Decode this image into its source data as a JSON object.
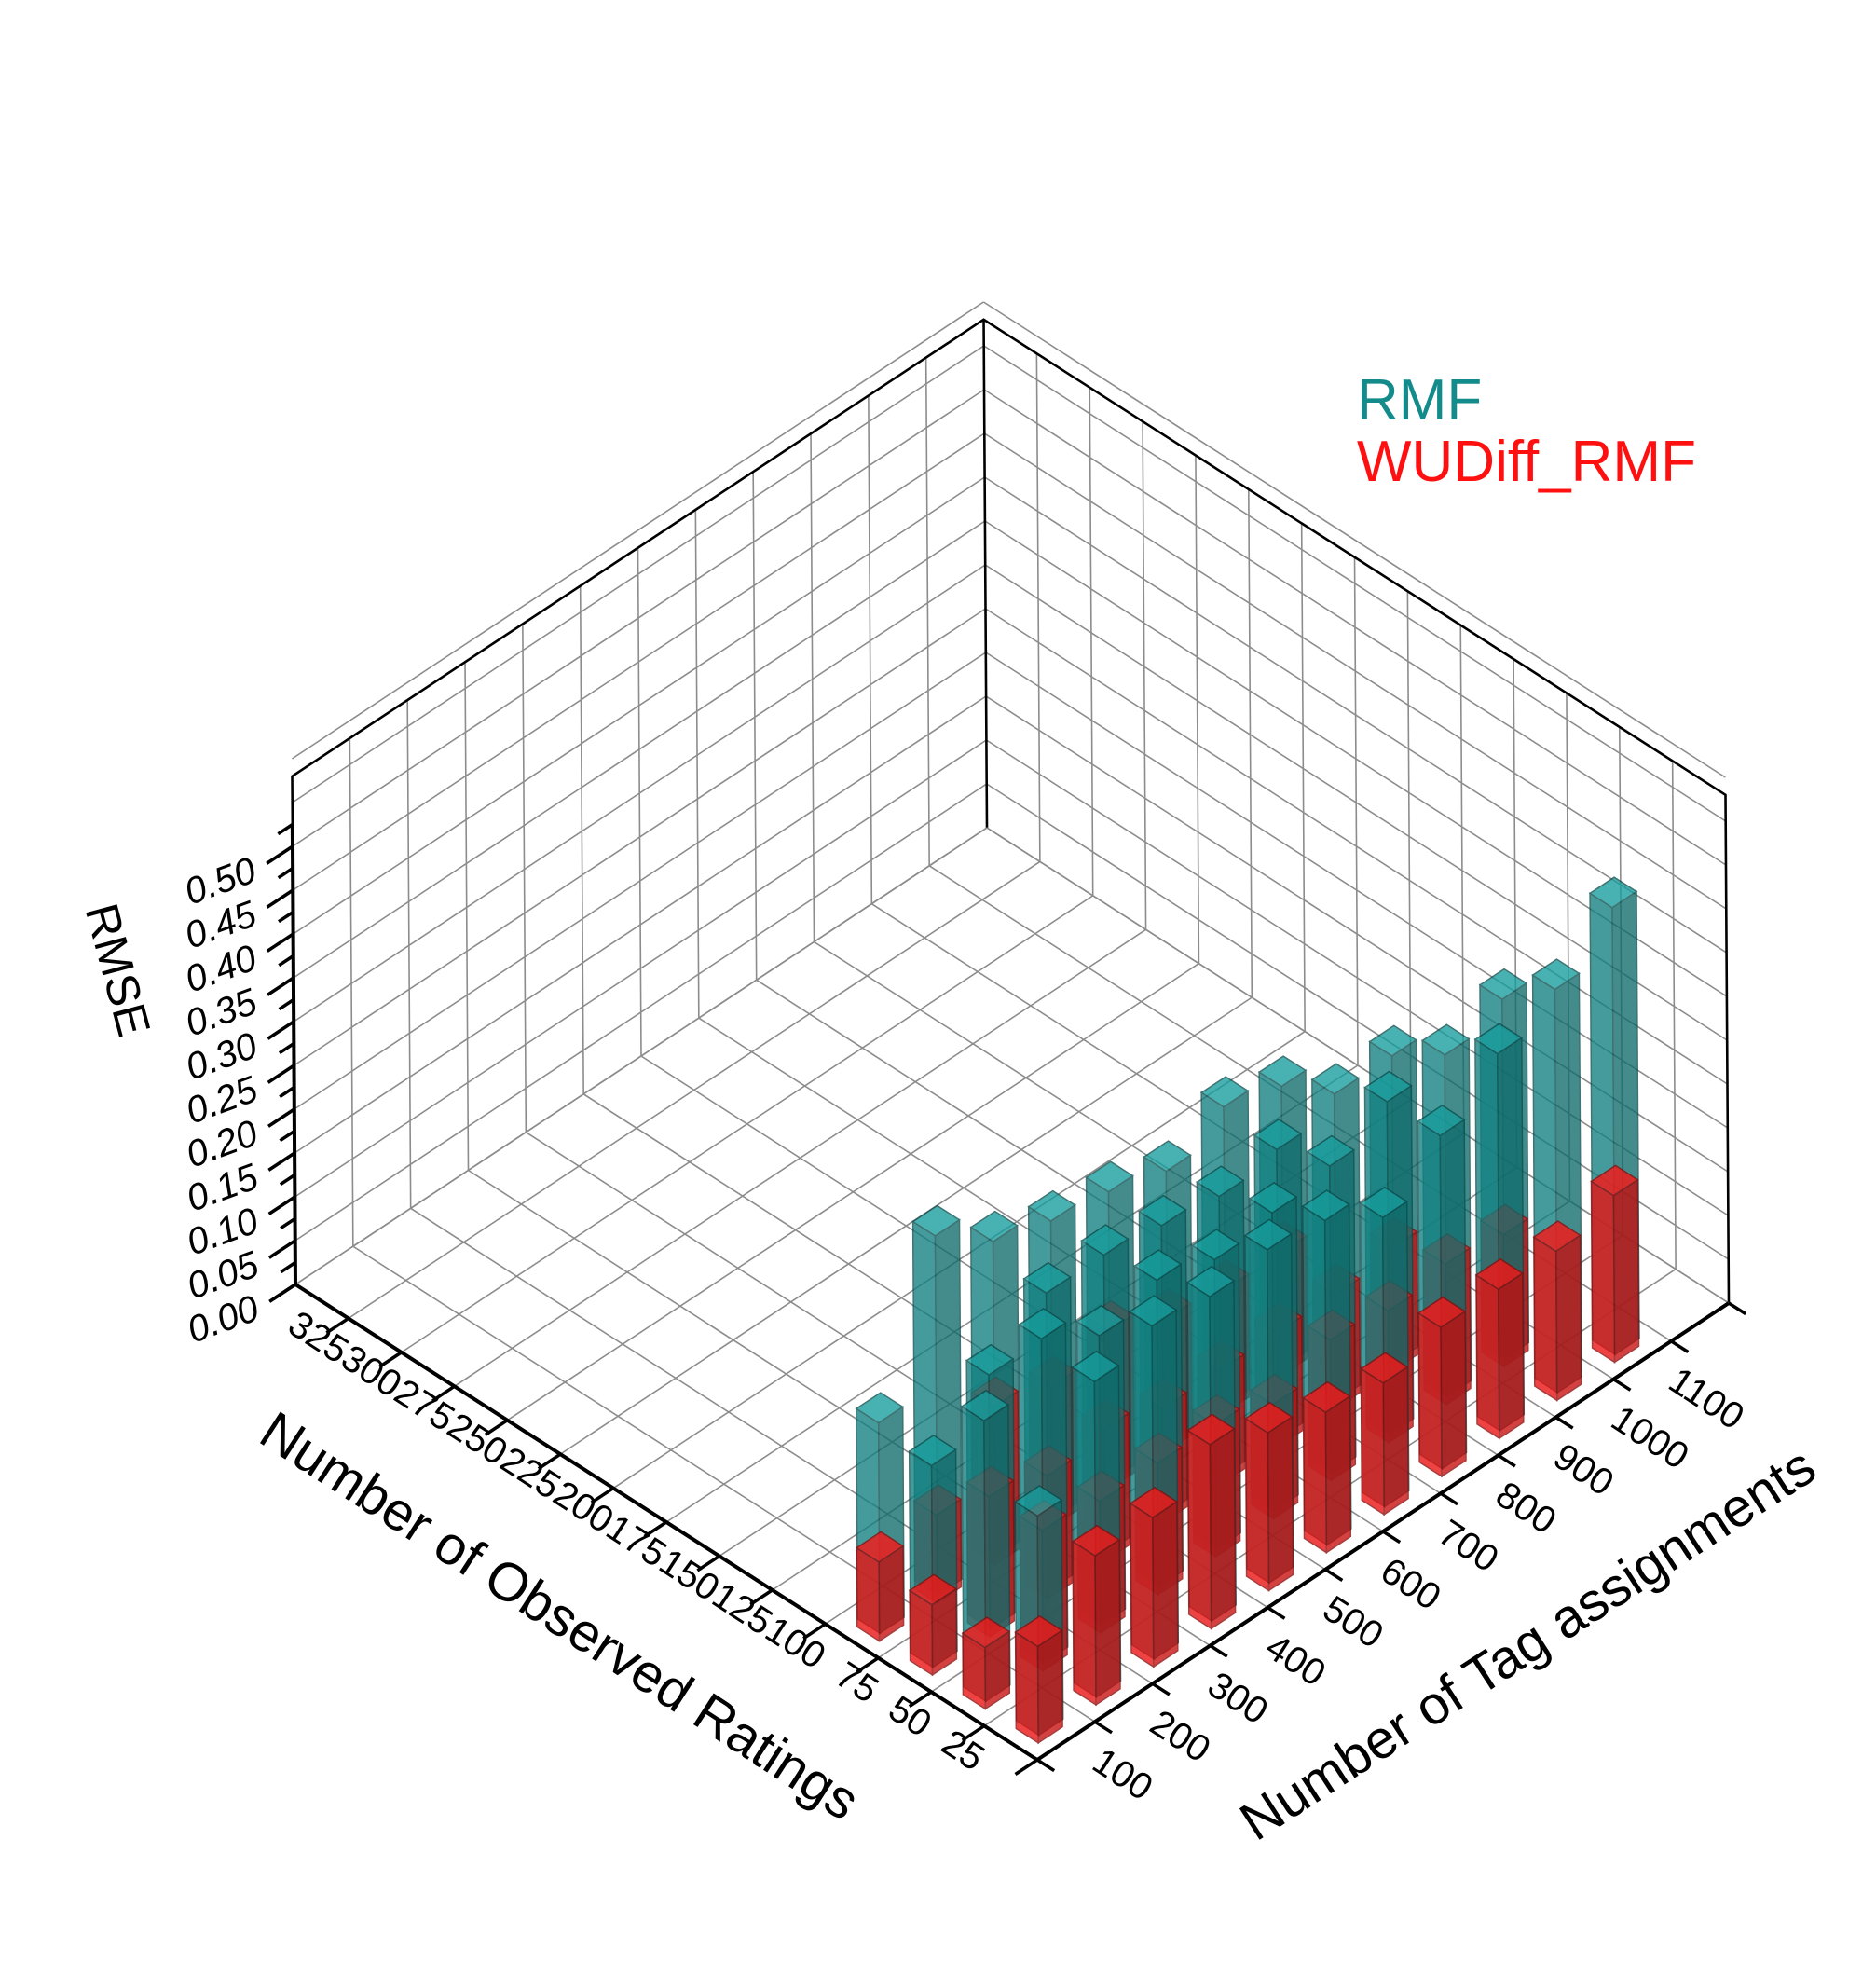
{
  "chart_data": {
    "type": "bar3d",
    "title": "",
    "xlabel": "Number of Observed Ratings",
    "ylabel": "Number of Tag assignments",
    "zlabel": "RMSE",
    "x_ticks": [
      "25",
      "50",
      "75",
      "100",
      "125",
      "150",
      "175",
      "200",
      "225",
      "250",
      "275",
      "300",
      "325"
    ],
    "y_ticks": [
      "100",
      "200",
      "300",
      "400",
      "500",
      "600",
      "700",
      "800",
      "900",
      "1000",
      "1100"
    ],
    "z_ticks": [
      "0.00",
      "0.05",
      "0.10",
      "0.15",
      "0.20",
      "0.25",
      "0.30",
      "0.35",
      "0.40",
      "0.45",
      "0.50"
    ],
    "zlim": [
      0,
      0.5
    ],
    "legend_position": "top-right",
    "colors": {
      "RMF": "#148b8b",
      "WUDiff_RMF": "#ff1010"
    },
    "series": [
      {
        "name": "RMF",
        "bars": [
          {
            "x": 25,
            "y": 1100,
            "z": 0.51
          },
          {
            "x": 25,
            "y": 1000,
            "z": 0.46
          },
          {
            "x": 50,
            "y": 1000,
            "z": 0.41
          },
          {
            "x": 50,
            "y": 900,
            "z": 0.39
          },
          {
            "x": 25,
            "y": 900,
            "z": 0.43
          },
          {
            "x": 75,
            "y": 900,
            "z": 0.35
          },
          {
            "x": 75,
            "y": 800,
            "z": 0.35
          },
          {
            "x": 25,
            "y": 800,
            "z": 0.38
          },
          {
            "x": 50,
            "y": 800,
            "z": 0.38
          },
          {
            "x": 100,
            "y": 800,
            "z": 0.32
          },
          {
            "x": 100,
            "y": 700,
            "z": 0.34
          },
          {
            "x": 50,
            "y": 700,
            "z": 0.35
          },
          {
            "x": 75,
            "y": 700,
            "z": 0.33
          },
          {
            "x": 25,
            "y": 700,
            "z": 0.33
          },
          {
            "x": 25,
            "y": 600,
            "z": 0.37
          },
          {
            "x": 50,
            "y": 600,
            "z": 0.34
          },
          {
            "x": 75,
            "y": 600,
            "z": 0.32
          },
          {
            "x": 100,
            "y": 600,
            "z": 0.31
          },
          {
            "x": 100,
            "y": 500,
            "z": 0.33
          },
          {
            "x": 25,
            "y": 500,
            "z": 0.38
          },
          {
            "x": 50,
            "y": 500,
            "z": 0.33
          },
          {
            "x": 75,
            "y": 500,
            "z": 0.33
          },
          {
            "x": 75,
            "y": 400,
            "z": 0.34
          },
          {
            "x": 50,
            "y": 400,
            "z": 0.35
          },
          {
            "x": 100,
            "y": 400,
            "z": 0.34
          },
          {
            "x": 25,
            "y": 400,
            "z": 0.37
          },
          {
            "x": 25,
            "y": 300,
            "z": 0.38
          },
          {
            "x": 50,
            "y": 300,
            "z": 0.33
          },
          {
            "x": 75,
            "y": 300,
            "z": 0.34
          },
          {
            "x": 100,
            "y": 300,
            "z": 0.36
          },
          {
            "x": 100,
            "y": 200,
            "z": 0.41
          },
          {
            "x": 75,
            "y": 200,
            "z": 0.29
          },
          {
            "x": 25,
            "y": 200,
            "z": 0.36
          },
          {
            "x": 50,
            "y": 200,
            "z": 0.37
          },
          {
            "x": 50,
            "y": 100,
            "z": 0.32
          },
          {
            "x": 100,
            "y": 100,
            "z": 0.24
          },
          {
            "x": 75,
            "y": 100,
            "z": 0.23
          },
          {
            "x": 25,
            "y": 100,
            "z": 0.25
          }
        ]
      },
      {
        "name": "WUDiff_RMF",
        "bars": [
          {
            "x": 25,
            "y": 1100,
            "z": 0.19
          },
          {
            "x": 25,
            "y": 1000,
            "z": 0.17
          },
          {
            "x": 50,
            "y": 1000,
            "z": 0.15
          },
          {
            "x": 50,
            "y": 900,
            "z": 0.16
          },
          {
            "x": 25,
            "y": 900,
            "z": 0.17
          },
          {
            "x": 75,
            "y": 900,
            "z": 0.14
          },
          {
            "x": 75,
            "y": 800,
            "z": 0.13
          },
          {
            "x": 25,
            "y": 800,
            "z": 0.17
          },
          {
            "x": 50,
            "y": 800,
            "z": 0.15
          },
          {
            "x": 100,
            "y": 800,
            "z": 0.14
          },
          {
            "x": 100,
            "y": 700,
            "z": 0.14
          },
          {
            "x": 50,
            "y": 700,
            "z": 0.16
          },
          {
            "x": 75,
            "y": 700,
            "z": 0.13
          },
          {
            "x": 25,
            "y": 700,
            "z": 0.15
          },
          {
            "x": 25,
            "y": 600,
            "z": 0.16
          },
          {
            "x": 50,
            "y": 600,
            "z": 0.13
          },
          {
            "x": 75,
            "y": 600,
            "z": 0.13
          },
          {
            "x": 100,
            "y": 600,
            "z": 0.15
          },
          {
            "x": 100,
            "y": 500,
            "z": 0.18
          },
          {
            "x": 25,
            "y": 500,
            "z": 0.18
          },
          {
            "x": 50,
            "y": 500,
            "z": 0.15
          },
          {
            "x": 75,
            "y": 500,
            "z": 0.13
          },
          {
            "x": 75,
            "y": 400,
            "z": 0.15
          },
          {
            "x": 50,
            "y": 400,
            "z": 0.15
          },
          {
            "x": 100,
            "y": 400,
            "z": 0.16
          },
          {
            "x": 25,
            "y": 400,
            "z": 0.21
          },
          {
            "x": 25,
            "y": 300,
            "z": 0.17
          },
          {
            "x": 50,
            "y": 300,
            "z": 0.15
          },
          {
            "x": 75,
            "y": 300,
            "z": 0.14
          },
          {
            "x": 100,
            "y": 300,
            "z": 0.18
          },
          {
            "x": 100,
            "y": 200,
            "z": 0.1
          },
          {
            "x": 75,
            "y": 200,
            "z": 0.16
          },
          {
            "x": 25,
            "y": 200,
            "z": 0.17
          },
          {
            "x": 50,
            "y": 200,
            "z": 0.16
          },
          {
            "x": 50,
            "y": 100,
            "z": 0.07
          },
          {
            "x": 100,
            "y": 100,
            "z": 0.09
          },
          {
            "x": 75,
            "y": 100,
            "z": 0.08
          },
          {
            "x": 25,
            "y": 100,
            "z": 0.11
          }
        ]
      }
    ]
  }
}
